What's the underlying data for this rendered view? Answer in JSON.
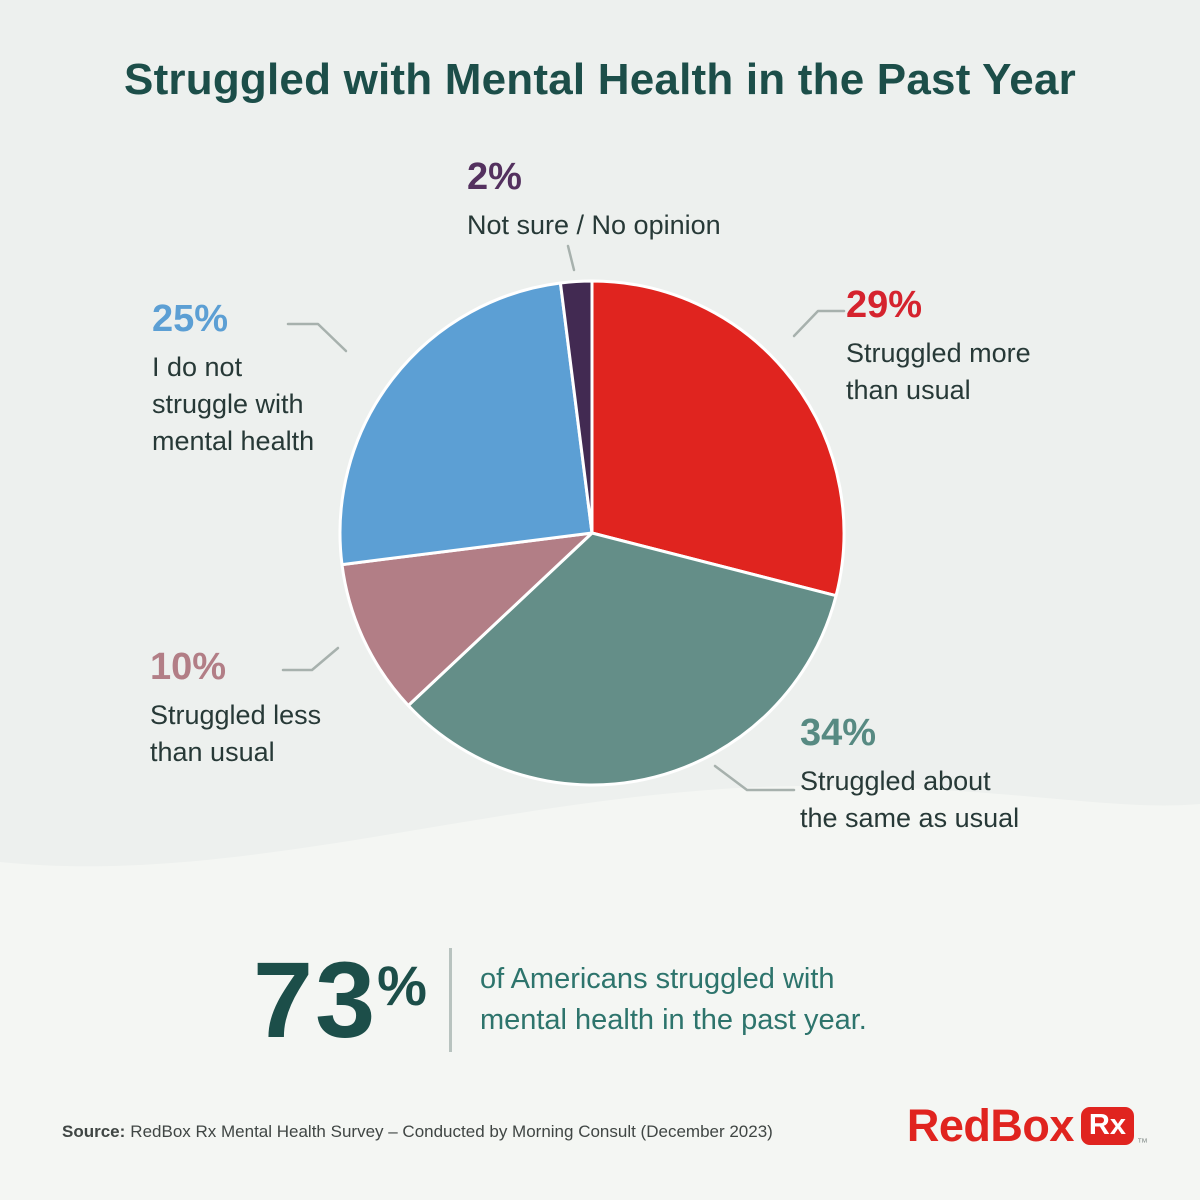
{
  "page": {
    "title": "Struggled with Mental Health in the Past Year",
    "background_top": "#edf0ee",
    "background_bottom": "#f4f6f3"
  },
  "chart_data": {
    "type": "pie",
    "title": "Struggled with Mental Health in the Past Year",
    "legend_position": "callout-labels",
    "start_angle_deg": -90,
    "direction": "clockwise",
    "stroke": "#ffffff",
    "slices": [
      {
        "label": "Struggled more than usual",
        "value": 29,
        "pct_label": "29%",
        "color": "#e0241f",
        "label_color": "#d5232e"
      },
      {
        "label": "Struggled about the same as usual",
        "value": 34,
        "pct_label": "34%",
        "color": "#648e88",
        "label_color": "#578a82"
      },
      {
        "label": "Struggled less than usual",
        "value": 10,
        "pct_label": "10%",
        "color": "#b27e86",
        "label_color": "#b27e86"
      },
      {
        "label": "I do not struggle with mental health",
        "value": 25,
        "pct_label": "25%",
        "color": "#5c9fd4",
        "label_color": "#5c9fd4"
      },
      {
        "label": "Not sure / No opinion",
        "value": 2,
        "pct_label": "2%",
        "color": "#422a52",
        "label_color": "#54315f"
      }
    ]
  },
  "callouts": {
    "not_sure": {
      "pct": "2%",
      "desc": "Not sure / No opinion"
    },
    "more": {
      "pct": "29%",
      "desc": "Struggled more\nthan usual"
    },
    "same": {
      "pct": "34%",
      "desc": "Struggled about\nthe same as usual"
    },
    "less": {
      "pct": "10%",
      "desc": "Struggled less\nthan usual"
    },
    "none": {
      "pct": "25%",
      "desc": "I do not\nstruggle with\nmental health"
    }
  },
  "summary": {
    "stat_number": "73",
    "stat_percent": "%",
    "text": "of Americans struggled with\nmental health in the past year."
  },
  "source": {
    "prefix": "Source:",
    "text": "RedBox Rx Mental Health Survey – Conducted by Morning Consult (December 2023)"
  },
  "logo": {
    "wordmark": "RedBox",
    "badge": "Rx",
    "trademark": "™"
  }
}
